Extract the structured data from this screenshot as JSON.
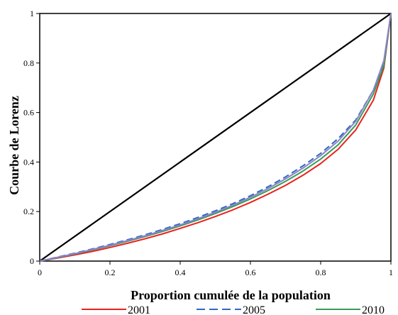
{
  "chart_data": {
    "type": "line",
    "title": "",
    "xlabel": "Proportion cumulée de la population",
    "ylabel": "Courbe de Lorenz",
    "xlim": [
      0,
      1
    ],
    "ylim": [
      0,
      1
    ],
    "x_ticks": [
      "0",
      "0.2",
      "0.4",
      "0.6",
      "0.8",
      "1"
    ],
    "y_ticks": [
      "0",
      "0.2",
      "0.4",
      "0.6",
      "0.8",
      "1"
    ],
    "grid": false,
    "legend_position": "bottom",
    "equality_line": {
      "x": [
        0,
        1
      ],
      "y": [
        0,
        1
      ],
      "color": "#000000"
    },
    "x": [
      0,
      0.05,
      0.1,
      0.15,
      0.2,
      0.25,
      0.3,
      0.35,
      0.4,
      0.45,
      0.5,
      0.55,
      0.6,
      0.65,
      0.7,
      0.75,
      0.8,
      0.85,
      0.9,
      0.95,
      0.98,
      1
    ],
    "series": [
      {
        "name": "2001",
        "color": "#e8221c",
        "dash": "solid",
        "values": [
          0,
          0.012,
          0.025,
          0.039,
          0.055,
          0.072,
          0.09,
          0.11,
          0.132,
          0.155,
          0.18,
          0.207,
          0.237,
          0.27,
          0.306,
          0.347,
          0.394,
          0.452,
          0.53,
          0.65,
          0.78,
          1
        ]
      },
      {
        "name": "2005",
        "color": "#2f68c4",
        "dash": "dashed",
        "values": [
          0,
          0.016,
          0.032,
          0.049,
          0.067,
          0.086,
          0.106,
          0.128,
          0.151,
          0.176,
          0.203,
          0.232,
          0.264,
          0.3,
          0.34,
          0.385,
          0.435,
          0.495,
          0.57,
          0.69,
          0.8,
          1
        ]
      },
      {
        "name": "2010",
        "color": "#3a9a5a",
        "dash": "solid",
        "values": [
          0,
          0.014,
          0.029,
          0.045,
          0.062,
          0.08,
          0.099,
          0.12,
          0.142,
          0.166,
          0.192,
          0.22,
          0.251,
          0.285,
          0.322,
          0.364,
          0.412,
          0.47,
          0.55,
          0.675,
          0.79,
          1
        ]
      },
      {
        "name": "",
        "color": "#8a84c8",
        "dash": "solid",
        "values": [
          0,
          0.015,
          0.03,
          0.047,
          0.064,
          0.083,
          0.102,
          0.124,
          0.146,
          0.171,
          0.197,
          0.226,
          0.258,
          0.293,
          0.332,
          0.376,
          0.426,
          0.485,
          0.565,
          0.69,
          0.81,
          1
        ]
      }
    ]
  }
}
